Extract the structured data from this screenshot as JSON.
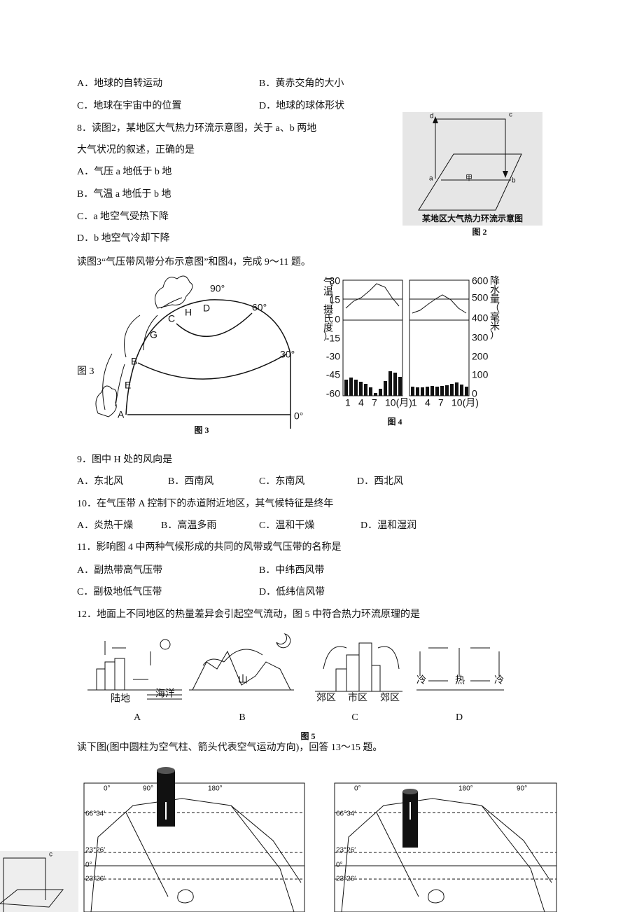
{
  "q7": {
    "options": [
      "A．地球的自转运动",
      "B．黄赤交角的大小",
      "C．地球在宇宙中的位置",
      "D．地球的球体形状"
    ]
  },
  "q8": {
    "stem": [
      "8．读图2，某地区大气热力环流示意图，关于 a、b 两地",
      "大气状况的叙述，正确的是"
    ],
    "options": [
      "A．气压 a 地低于 b 地",
      "B．气温 a 地低于 b 地",
      "C．a 地空气受热下降",
      "D．b 地空气冷却下降"
    ]
  },
  "figure2": {
    "labels": [
      "d",
      "c",
      "a",
      "甲",
      "b"
    ],
    "caption": "某地区大气热力环流示意图",
    "number": "图 2"
  },
  "intro_9_11": "读图3“气压带风带分布示意图”和图4，完成 9～11 题。",
  "figure3": {
    "side_label": "图 3",
    "latitudes": [
      "90°",
      "60°",
      "30°",
      "0°"
    ],
    "letters": [
      "A",
      "B",
      "C",
      "D",
      "E",
      "G",
      "H"
    ],
    "caption": "图 3"
  },
  "figure4": {
    "left_axis_title": [
      "气",
      "温",
      "（",
      "摄",
      "氏",
      "度",
      "）"
    ],
    "left_ticks": [
      "30",
      "15",
      "0",
      "-15",
      "-30",
      "-45",
      "-60"
    ],
    "right_axis_title": [
      "降",
      "水",
      "量",
      "（",
      "毫",
      "米",
      "）"
    ],
    "right_ticks": [
      "600",
      "500",
      "400",
      "300",
      "200",
      "100",
      "0"
    ],
    "x_labels": [
      "1",
      "4",
      "7",
      "10(月)"
    ],
    "caption": "图 4"
  },
  "q9": {
    "stem": "9．图中 H 处的风向是",
    "options": [
      "A．东北风",
      "B．西南风",
      "C．东南风",
      "D．西北风"
    ]
  },
  "q10": {
    "stem": "10．在气压带 A 控制下的赤道附近地区，其气候特征是终年",
    "options": [
      "A．炎热干燥",
      "B．高温多雨",
      "C．温和干燥",
      "D．温和湿润"
    ]
  },
  "q11": {
    "stem": "11．影响图 4 中两种气候形成的共同的风带或气压带的名称是",
    "options": [
      "A．副热带高气压带",
      "B．中纬西风带",
      "C．副极地低气压带",
      "D．低纬信风带"
    ]
  },
  "q12": {
    "stem": "12．地面上不同地区的热量差异会引起空气流动，图 5 中符合热力环流原理的是"
  },
  "figure5": {
    "inner_labels": [
      "陆地",
      "海洋",
      "山",
      "郊区",
      "市区",
      "郊区",
      "冷",
      "热",
      "冷"
    ],
    "panel_letters": [
      "A",
      "B",
      "C",
      "D"
    ],
    "caption": "图 5"
  },
  "intro_13_15": "读下图(图中圆柱为空气柱、箭头代表空气运动方向)，回答 13～15 题。",
  "maps": {
    "left_labels": [
      "0°",
      "90°",
      "180°",
      "66°34′",
      "23°26′",
      "0°",
      "23°26′"
    ],
    "right_labels": [
      "0°",
      "180°",
      "90°",
      "66°34′",
      "23°26′",
      "0°",
      "23°26′"
    ]
  },
  "fragment": {
    "label": "c"
  }
}
